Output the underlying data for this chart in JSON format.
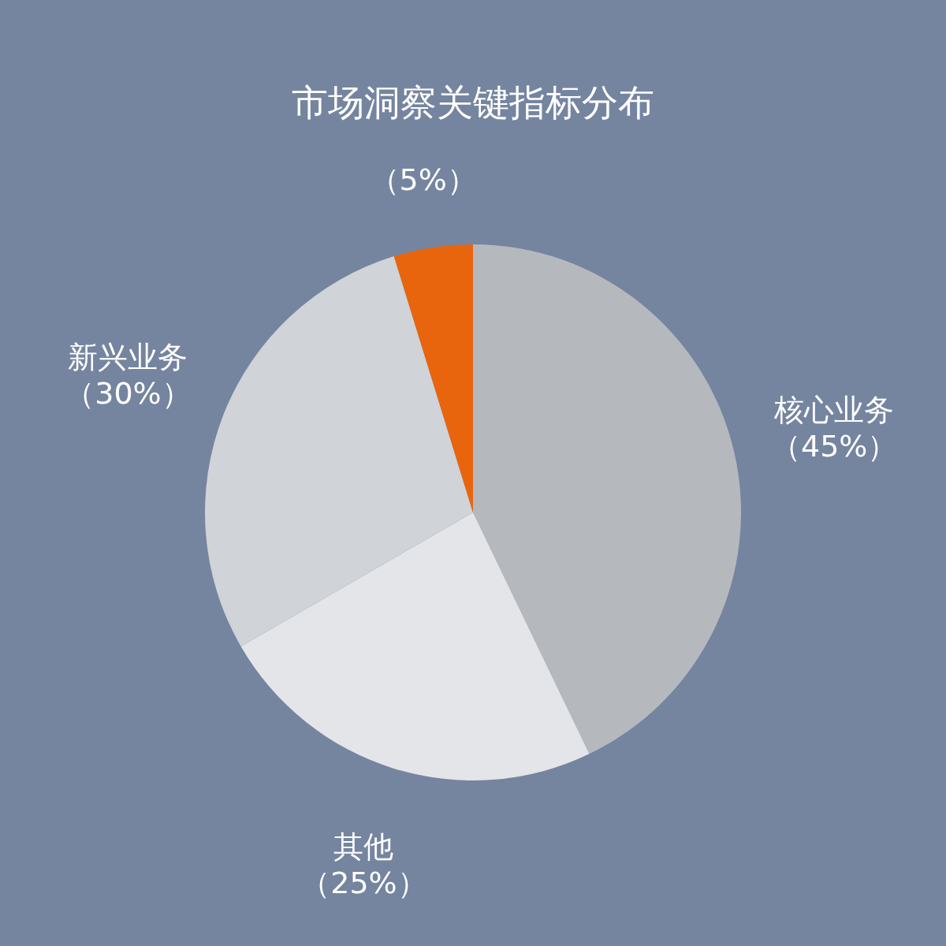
{
  "chart_data": {
    "type": "pie",
    "title": "市场洞察关键指标分布",
    "categories": [
      "核心业务",
      "其他",
      "新兴业务",
      null
    ],
    "values": [
      45,
      25,
      30,
      5
    ],
    "value_labels": [
      "（45%）",
      "（25%）",
      "（30%）",
      "（5%）"
    ],
    "colors": [
      "#b5b9be",
      "#e3e5e8",
      "#d0d3d7",
      "#e8650e"
    ]
  }
}
